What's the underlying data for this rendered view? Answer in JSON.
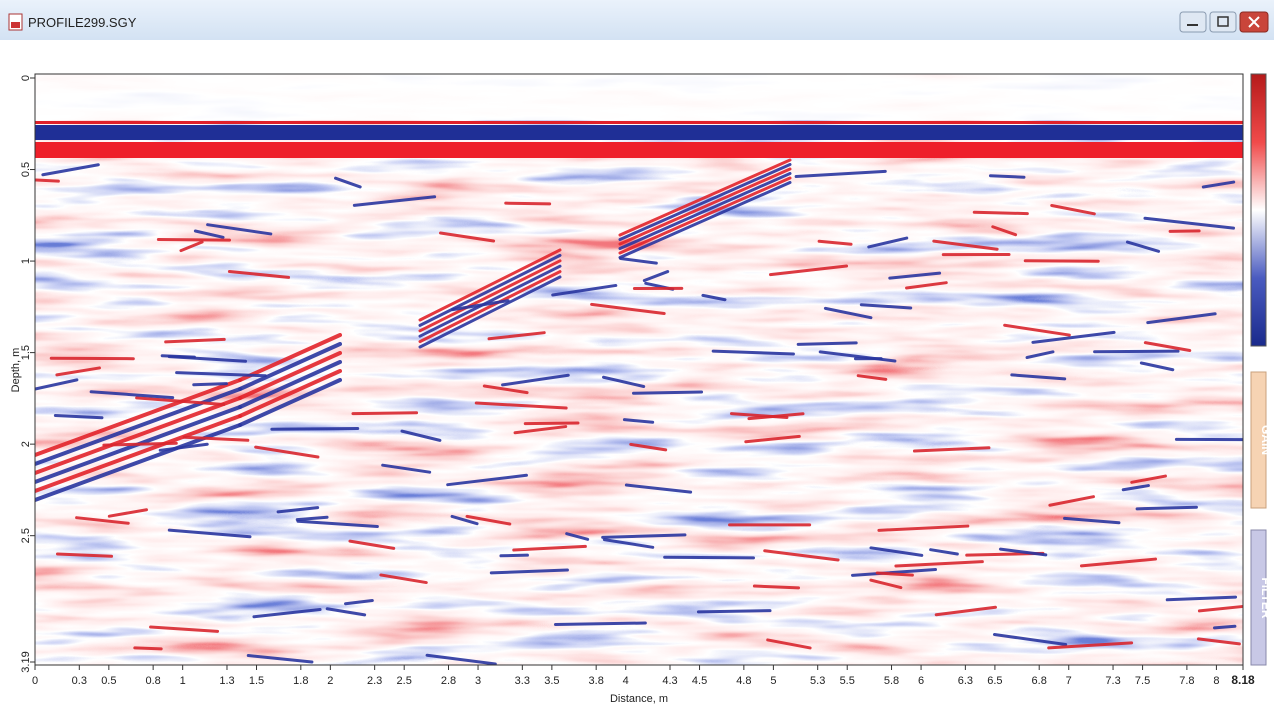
{
  "window": {
    "title": "PROFILE299.SGY"
  },
  "chart_data": {
    "type": "radargram",
    "x_label": "Distance, m",
    "y_label": "Depth, m",
    "xlim": [
      0,
      8.18
    ],
    "ylim": [
      0,
      3.19
    ],
    "xticks": [
      0,
      0.3,
      0.5,
      0.8,
      1,
      1.3,
      1.5,
      1.8,
      2,
      2.3,
      2.5,
      2.8,
      3,
      3.3,
      3.5,
      3.8,
      4,
      4.3,
      4.5,
      4.8,
      5,
      5.3,
      5.5,
      5.8,
      6,
      6.3,
      6.5,
      6.8,
      7,
      7.3,
      7.5,
      7.8,
      8,
      8.18
    ],
    "yticks": [
      0,
      0.5,
      1,
      1.5,
      2,
      2.5,
      3.19
    ]
  },
  "side_buttons": [
    "GAIN",
    "FILTER"
  ]
}
